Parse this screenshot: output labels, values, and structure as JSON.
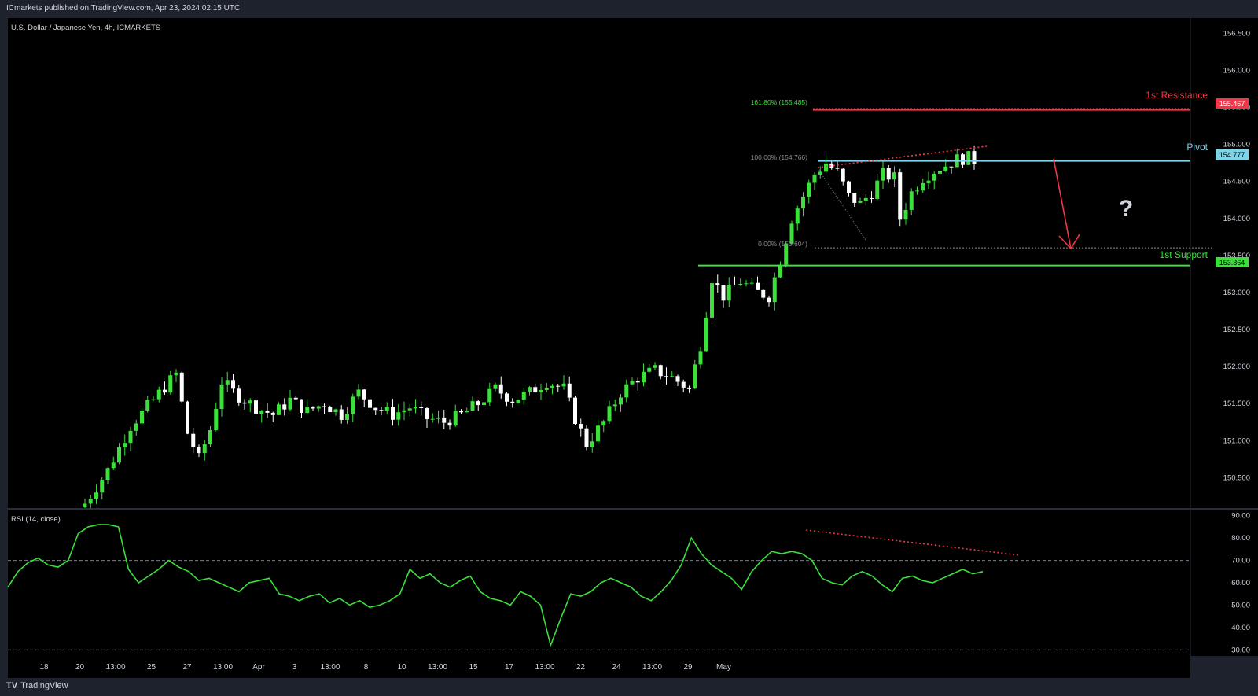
{
  "header": {
    "published": "ICmarkets published on TradingView.com, Apr 23, 2024 02:15 UTC"
  },
  "footer": {
    "logo_mark": "TV",
    "brand": "TradingView"
  },
  "chart_data": [
    {
      "type": "candlestick",
      "symbol_label": "U.S. Dollar / Japanese Yen, 4h, ICMARKETS",
      "ylim": [
        150.1,
        156.6
      ],
      "y_ticks": [
        "156.500",
        "156.000",
        "155.500",
        "155.000",
        "154.500",
        "154.000",
        "153.500",
        "153.000",
        "152.500",
        "152.000",
        "151.500",
        "151.000",
        "150.500"
      ],
      "x_ticks": [
        "18",
        "20",
        "13:00",
        "25",
        "27",
        "13:00",
        "Apr",
        "3",
        "13:00",
        "8",
        "10",
        "13:00",
        "15",
        "17",
        "13:00",
        "22",
        "24",
        "13:00",
        "29",
        "May"
      ],
      "path_points": [
        [
          0,
          150.15
        ],
        [
          4,
          150.6
        ],
        [
          8,
          151.2
        ],
        [
          12,
          151.55
        ],
        [
          16,
          151.9
        ],
        [
          18,
          151.1
        ],
        [
          20,
          150.75
        ],
        [
          22,
          151.15
        ],
        [
          24,
          151.8
        ],
        [
          27,
          151.6
        ],
        [
          30,
          151.45
        ],
        [
          33,
          151.35
        ],
        [
          36,
          151.55
        ],
        [
          39,
          151.4
        ],
        [
          42,
          151.5
        ],
        [
          45,
          151.35
        ],
        [
          48,
          151.65
        ],
        [
          51,
          151.45
        ],
        [
          54,
          151.35
        ],
        [
          57,
          151.45
        ],
        [
          60,
          151.3
        ],
        [
          63,
          151.25
        ],
        [
          66,
          151.35
        ],
        [
          69,
          151.5
        ],
        [
          72,
          151.7
        ],
        [
          75,
          151.55
        ],
        [
          78,
          151.65
        ],
        [
          81,
          151.8
        ],
        [
          84,
          151.7
        ],
        [
          86,
          151.3
        ],
        [
          88,
          150.95
        ],
        [
          91,
          151.25
        ],
        [
          94,
          151.65
        ],
        [
          97,
          151.85
        ],
        [
          100,
          151.95
        ],
        [
          103,
          151.85
        ],
        [
          106,
          151.7
        ],
        [
          108,
          152.3
        ],
        [
          110,
          153.2
        ],
        [
          112,
          152.95
        ],
        [
          115,
          153.15
        ],
        [
          118,
          153.0
        ],
        [
          120,
          152.95
        ],
        [
          122,
          153.45
        ],
        [
          124,
          154.0
        ],
        [
          126,
          154.3
        ],
        [
          128,
          154.6
        ],
        [
          130,
          154.75
        ],
        [
          132,
          154.62
        ],
        [
          134,
          154.3
        ],
        [
          136,
          154.2
        ],
        [
          138,
          154.35
        ],
        [
          140,
          154.6
        ],
        [
          142,
          154.55
        ],
        [
          143,
          154.0
        ],
        [
          145,
          154.35
        ],
        [
          147,
          154.55
        ],
        [
          149,
          154.65
        ],
        [
          151,
          154.72
        ],
        [
          153,
          154.8
        ],
        [
          155,
          154.82
        ],
        [
          156,
          154.78
        ]
      ],
      "levels": [
        {
          "name": "1st Resistance",
          "price_label": "155.467",
          "color": "#f23645",
          "value": 155.467
        },
        {
          "name": "Pivot",
          "price_label": "154.777",
          "color": "#7dd3e8",
          "value": 154.777
        },
        {
          "name": "1st Support",
          "price_label": "153.364",
          "color": "#3be03b",
          "value": 153.364
        }
      ],
      "fib_labels": [
        {
          "text": "161.80% (155.485)",
          "value": 155.485
        },
        {
          "text": "100.00% (154.766)",
          "value": 154.766
        },
        {
          "text": "0.00% (153.604)",
          "value": 153.604
        }
      ],
      "annotation": "?",
      "colors": {
        "up": "#3be03b",
        "down": "#ffffff",
        "background": "#000000"
      }
    },
    {
      "type": "line",
      "label": "RSI (14, close)",
      "ylim": [
        28,
        92
      ],
      "y_ticks": [
        "90.00",
        "80.00",
        "70.00",
        "60.00",
        "50.00",
        "40.00",
        "30.00"
      ],
      "reference_levels": [
        70,
        30
      ],
      "values": [
        58,
        65,
        69,
        71,
        68,
        67,
        70,
        82,
        85,
        86,
        86,
        85,
        66,
        60,
        63,
        66,
        70,
        67,
        65,
        61,
        62,
        60,
        58,
        56,
        60,
        61,
        62,
        55,
        54,
        52,
        54,
        55,
        51,
        53,
        50,
        52,
        49,
        50,
        52,
        55,
        66,
        62,
        64,
        60,
        58,
        61,
        63,
        56,
        53,
        52,
        50,
        56,
        54,
        50,
        32,
        44,
        55,
        54,
        56,
        60,
        62,
        60,
        58,
        54,
        52,
        56,
        61,
        68,
        80,
        73,
        68,
        65,
        62,
        57,
        65,
        70,
        74,
        73,
        74,
        73,
        70,
        62,
        60,
        59,
        63,
        65,
        63,
        59,
        56,
        62,
        63,
        61,
        60,
        62,
        64,
        66,
        64,
        65
      ],
      "color": "#3be03b"
    }
  ]
}
